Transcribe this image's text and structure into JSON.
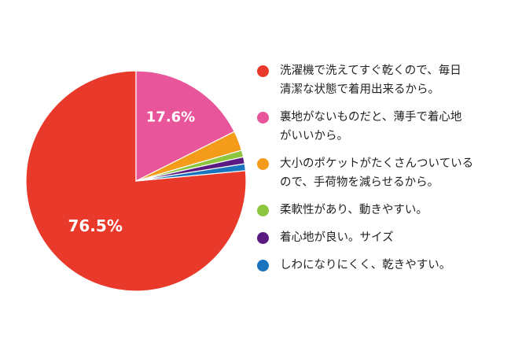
{
  "chart_data": {
    "type": "pie",
    "slices": [
      {
        "label": "洗濯機で洗えてすぐ乾くので、毎日\n清潔な状態で着用出来るから。",
        "value": 76.5,
        "color": "#e8392b",
        "display": "76.5%"
      },
      {
        "label": "裏地がないものだと、薄手で着心地\nがいいから。",
        "value": 17.6,
        "color": "#e8559b",
        "display": "17.6%"
      },
      {
        "label": "大小のポケットがたくさんついている\nので、手荷物を減らせるから。",
        "value": 2.9,
        "color": "#f29c1a",
        "display": ""
      },
      {
        "label": "柔軟性があり、動きやすい。",
        "value": 1.0,
        "color": "#8cc63f",
        "display": ""
      },
      {
        "label": "着心地が良い。サイズ",
        "value": 1.0,
        "color": "#5b1a82",
        "display": ""
      },
      {
        "label": "しわになりにくく、乾きやすい。",
        "value": 1.0,
        "color": "#1a73bd",
        "display": ""
      }
    ],
    "legend_position": "right"
  }
}
